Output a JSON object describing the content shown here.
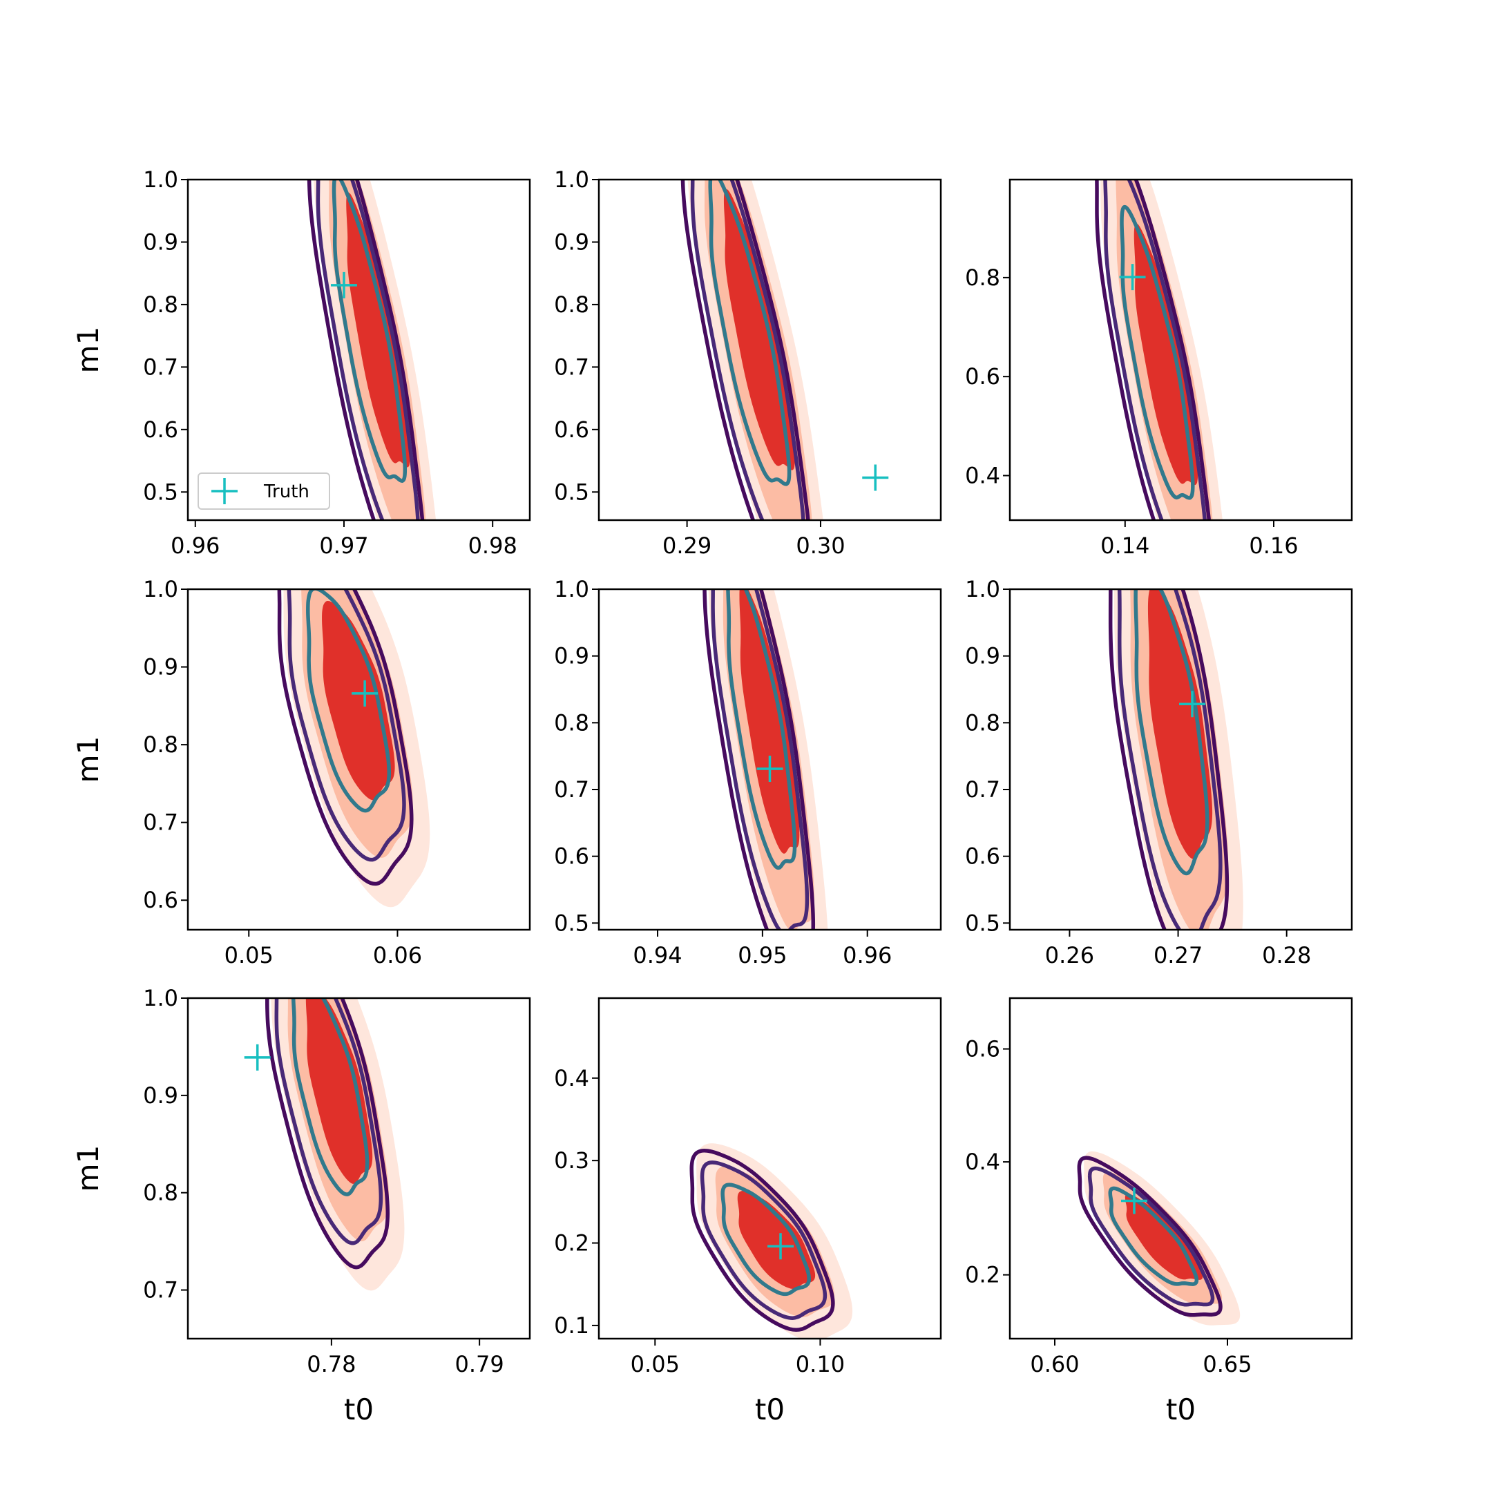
{
  "chart_data": [
    {
      "type": "contour",
      "row": 0,
      "col": 0,
      "xlim": [
        0.9595,
        0.9825
      ],
      "ylim": [
        0.455,
        1.0
      ],
      "xticks": [
        "0.96",
        "0.97",
        "0.98"
      ],
      "yticks": [
        "0.5",
        "0.6",
        "0.7",
        "0.8",
        "0.9",
        "1.0"
      ],
      "xlabel": "",
      "ylabel": "m1",
      "truth": [
        0.97,
        0.831
      ],
      "center": [
        0.9718,
        0.74
      ],
      "rx": 0.0021,
      "ry": 0.215,
      "corr": -0.82,
      "legend": {
        "label": "Truth",
        "loc": "lower left"
      }
    },
    {
      "type": "contour",
      "row": 0,
      "col": 1,
      "xlim": [
        0.2834,
        0.309
      ],
      "ylim": [
        0.455,
        1.0
      ],
      "xticks": [
        "0.29",
        "0.30"
      ],
      "yticks": [
        "0.5",
        "0.6",
        "0.7",
        "0.8",
        "0.9",
        "1.0"
      ],
      "xlabel": "",
      "ylabel": "",
      "truth": [
        0.3041,
        0.523
      ],
      "center": [
        0.2948,
        0.74
      ],
      "rx": 0.0026,
      "ry": 0.22,
      "corr": -0.82
    },
    {
      "type": "contour",
      "row": 0,
      "col": 2,
      "xlim": [
        0.1245,
        0.1705
      ],
      "ylim": [
        0.31,
        0.998
      ],
      "xticks": [
        "0.14",
        "0.16"
      ],
      "yticks": [
        "0.4",
        "0.6",
        "0.8"
      ],
      "xlabel": "",
      "ylabel": "",
      "truth": [
        0.141,
        0.801
      ],
      "center": [
        0.1445,
        0.62
      ],
      "rx": 0.0042,
      "ry": 0.26,
      "corr": -0.8
    },
    {
      "type": "contour",
      "row": 1,
      "col": 0,
      "xlim": [
        0.0459,
        0.0689
      ],
      "ylim": [
        0.562,
        1.0
      ],
      "xticks": [
        "0.05",
        "0.06"
      ],
      "yticks": [
        "0.6",
        "0.7",
        "0.8",
        "0.9",
        "1.0"
      ],
      "xlabel": "",
      "ylabel": "m1",
      "truth": [
        0.0578,
        0.866
      ],
      "center": [
        0.0568,
        0.85
      ],
      "rx": 0.0024,
      "ry": 0.125,
      "corr": -0.6
    },
    {
      "type": "contour",
      "row": 1,
      "col": 1,
      "xlim": [
        0.9344,
        0.967
      ],
      "ylim": [
        0.49,
        1.0
      ],
      "xticks": [
        "0.94",
        "0.95",
        "0.96"
      ],
      "yticks": [
        "0.5",
        "0.6",
        "0.7",
        "0.8",
        "0.9",
        "1.0"
      ],
      "xlabel": "",
      "ylabel": "",
      "truth": [
        0.9507,
        0.731
      ],
      "center": [
        0.95,
        0.79
      ],
      "rx": 0.0028,
      "ry": 0.2,
      "corr": -0.75
    },
    {
      "type": "contour",
      "row": 1,
      "col": 2,
      "xlim": [
        0.2545,
        0.286
      ],
      "ylim": [
        0.49,
        1.0
      ],
      "xticks": [
        "0.26",
        "0.27",
        "0.28"
      ],
      "yticks": [
        "0.5",
        "0.6",
        "0.7",
        "0.8",
        "0.9",
        "1.0"
      ],
      "xlabel": "",
      "ylabel": "",
      "truth": [
        0.2713,
        0.828
      ],
      "center": [
        0.2695,
        0.79
      ],
      "rx": 0.0029,
      "ry": 0.2,
      "corr": -0.6
    },
    {
      "type": "contour",
      "row": 2,
      "col": 0,
      "xlim": [
        0.7703,
        0.7934
      ],
      "ylim": [
        0.65,
        1.0
      ],
      "xticks": [
        "0.78",
        "0.79"
      ],
      "yticks": [
        "0.7",
        "0.8",
        "0.9",
        "1.0"
      ],
      "xlabel": "t0",
      "ylabel": "m1",
      "truth": [
        0.775,
        0.939
      ],
      "center": [
        0.78,
        0.905
      ],
      "rx": 0.0022,
      "ry": 0.1,
      "corr": -0.65
    },
    {
      "type": "contour",
      "row": 2,
      "col": 1,
      "xlim": [
        0.033,
        0.1365
      ],
      "ylim": [
        0.084,
        0.497
      ],
      "xticks": [
        "0.05",
        "0.10"
      ],
      "yticks": [
        "0.1",
        "0.2",
        "0.3",
        "0.4"
      ],
      "xlabel": "t0",
      "ylabel": "",
      "truth": [
        0.088,
        0.196
      ],
      "center": [
        0.084,
        0.2
      ],
      "rx": 0.0115,
      "ry": 0.058,
      "corr": -0.65
    },
    {
      "type": "contour",
      "row": 2,
      "col": 2,
      "xlim": [
        0.587,
        0.686
      ],
      "ylim": [
        0.087,
        0.69
      ],
      "xticks": [
        "0.60",
        "0.65"
      ],
      "yticks": [
        "0.2",
        "0.4",
        "0.6"
      ],
      "xlabel": "t0",
      "ylabel": "",
      "truth": [
        0.623,
        0.331
      ],
      "center": [
        0.629,
        0.26
      ],
      "rx": 0.011,
      "ry": 0.075,
      "corr": -0.8
    }
  ],
  "colors": {
    "fill_levels": [
      "#fee6dc",
      "#fcbca4",
      "#e0302a"
    ],
    "line_levels": [
      "#460b5e",
      "#482977",
      "#31798c"
    ],
    "truth_marker": "#17bfc0"
  }
}
